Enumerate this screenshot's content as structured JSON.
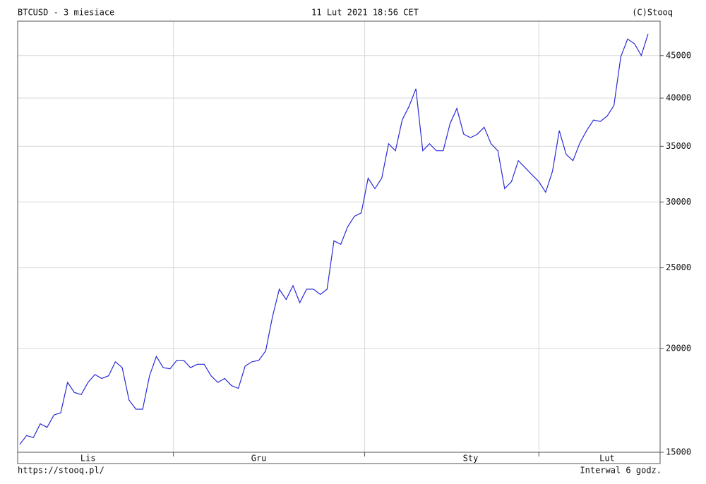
{
  "chart_data": {
    "type": "line",
    "title": "BTCUSD - 3 miesiace",
    "subtitle": "11 Lut 2021 18:56 CET",
    "credit": "(C)Stooq",
    "source": "https://stooq.pl/",
    "interval": "Interwal 6 godz.",
    "log_scale": true,
    "grid": true,
    "color": "#2a2ad6",
    "categories": [
      null,
      null,
      null,
      null,
      null,
      null,
      null,
      null,
      null,
      null,
      "Lis",
      null,
      null,
      null,
      null,
      null,
      null,
      null,
      null,
      null,
      null,
      null,
      null,
      null,
      null,
      null,
      null,
      null,
      null,
      null,
      null,
      null,
      null,
      null,
      null,
      "Gru",
      null,
      null,
      null,
      null,
      null,
      null,
      null,
      null,
      null,
      null,
      null,
      null,
      null,
      null,
      null,
      null,
      null,
      null,
      null,
      null,
      null,
      null,
      null,
      null,
      null,
      null,
      null,
      null,
      null,
      null,
      "Sty",
      null,
      null,
      null,
      null,
      null,
      null,
      null,
      null,
      null,
      null,
      null,
      null,
      null,
      null,
      null,
      null,
      null,
      null,
      null,
      "Lut",
      null,
      null,
      null,
      null,
      null,
      null
    ],
    "values": [
      15330,
      15710,
      15620,
      16230,
      16070,
      16630,
      16730,
      18200,
      17700,
      17600,
      18200,
      18600,
      18400,
      18540,
      19270,
      18960,
      17330,
      16900,
      16900,
      18540,
      19560,
      18960,
      18900,
      19350,
      19350,
      18960,
      19140,
      19140,
      18540,
      18200,
      18400,
      18040,
      17900,
      19040,
      19270,
      19350,
      19860,
      21820,
      23560,
      22900,
      23800,
      22700,
      23560,
      23560,
      23220,
      23560,
      26940,
      26680,
      27990,
      28830,
      29110,
      32040,
      31130,
      32040,
      35250,
      34570,
      37650,
      39100,
      41040,
      34570,
      35250,
      34570,
      34570,
      37280,
      38870,
      36200,
      35850,
      36200,
      36900,
      35250,
      34570,
      31130,
      31740,
      33640,
      32990,
      32350,
      31740,
      30820,
      32670,
      36550,
      34230,
      33640,
      35320,
      36550,
      37640,
      37500,
      38050,
      39200,
      44850,
      47110,
      46500,
      45000,
      47800
    ],
    "ylim": [
      15000,
      49500
    ],
    "yticks": [
      15000,
      20000,
      25000,
      30000,
      35000,
      40000,
      45000
    ]
  }
}
